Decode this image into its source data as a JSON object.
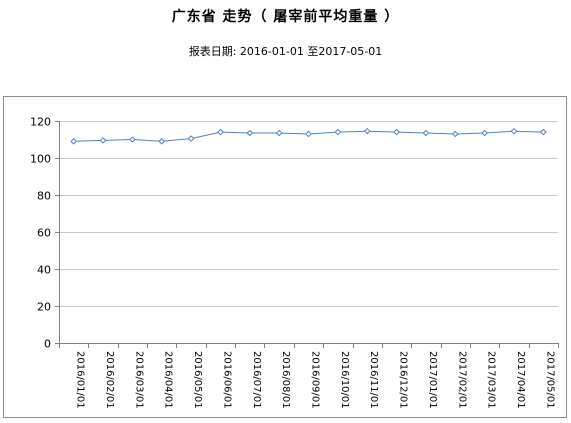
{
  "title": "广东省 走势（ 屠宰前平均重量 ）",
  "subtitle": "报表日期: 2016-01-01 至2017-05-01",
  "chart_data": {
    "type": "line",
    "title": "广东省 走势（ 屠宰前平均重量 ）",
    "subtitle": "报表日期: 2016-01-01 至2017-05-01",
    "categories": [
      "2016/01/01",
      "2016/02/01",
      "2016/03/01",
      "2016/04/01",
      "2016/05/01",
      "2016/06/01",
      "2016/07/01",
      "2016/08/01",
      "2016/09/01",
      "2016/10/01",
      "2016/11/01",
      "2016/12/01",
      "2017/01/01",
      "2017/02/01",
      "2017/03/01",
      "2017/04/01",
      "2017/05/01"
    ],
    "values": [
      109,
      109.5,
      110,
      109,
      110.5,
      114,
      113.5,
      113.5,
      113,
      114,
      114.5,
      114,
      113.5,
      113,
      113.5,
      114.5,
      114
    ],
    "yticks": [
      0,
      20,
      40,
      60,
      80,
      100,
      120
    ],
    "ylim": [
      0,
      120
    ],
    "xlabel": "",
    "ylabel": "",
    "grid": true,
    "colors": {
      "line": "#4f81bd",
      "grid": "#c8c8c8",
      "axis": "#808080"
    }
  }
}
